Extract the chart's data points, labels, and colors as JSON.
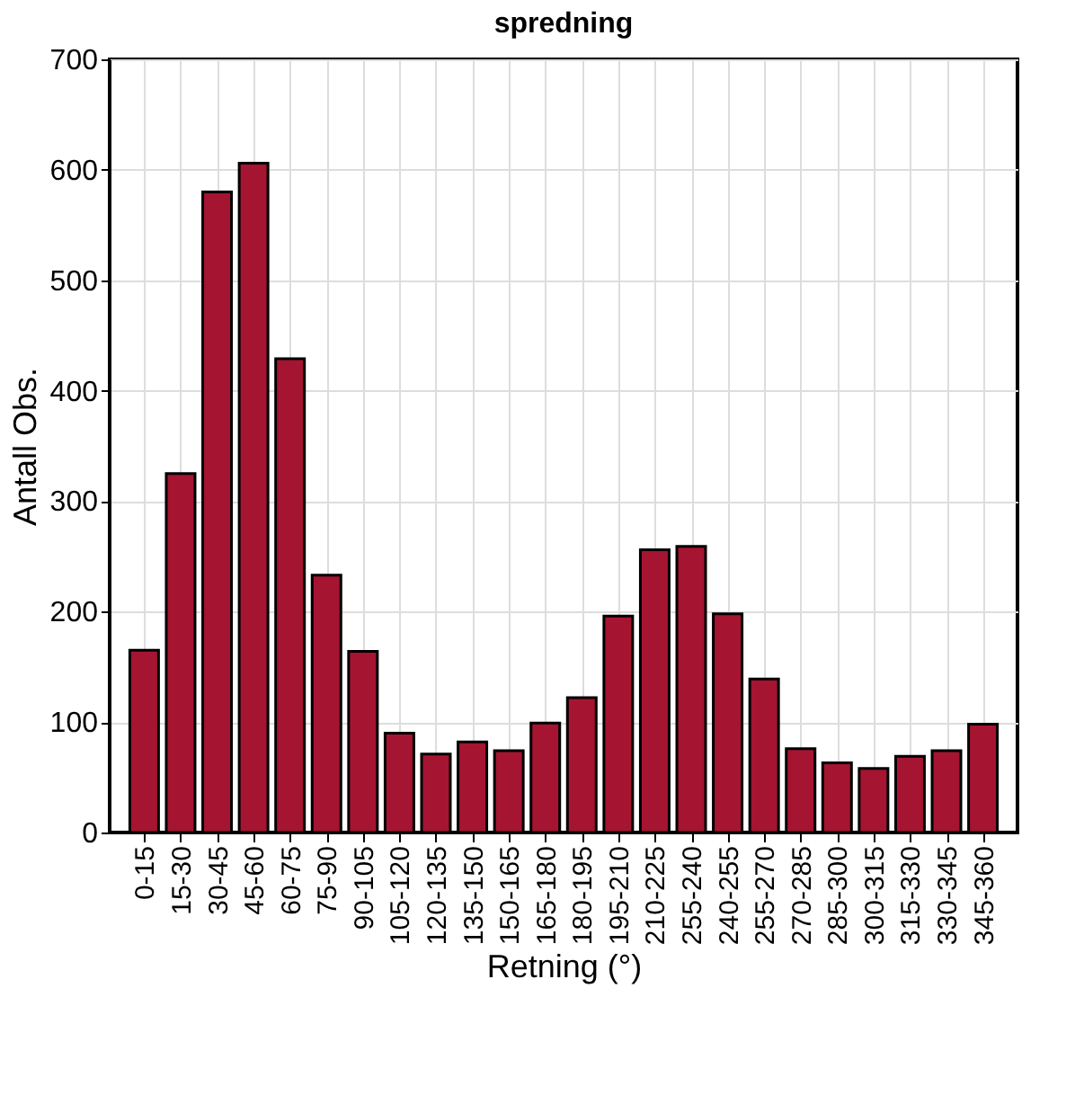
{
  "chart_data": {
    "type": "bar",
    "title": "spredning",
    "xlabel": "Retning (°)",
    "ylabel": "Antall Obs.",
    "categories": [
      "0-15",
      "15-30",
      "30-45",
      "45-60",
      "60-75",
      "75-90",
      "90-105",
      "105-120",
      "120-135",
      "135-150",
      "150-165",
      "165-180",
      "180-195",
      "195-210",
      "210-225",
      "255-240",
      "240-255",
      "255-270",
      "270-285",
      "285-300",
      "300-315",
      "315-330",
      "330-345",
      "345-360"
    ],
    "values": [
      165,
      325,
      580,
      606,
      429,
      233,
      164,
      90,
      71,
      82,
      74,
      99,
      122,
      196,
      256,
      259,
      198,
      139,
      76,
      63,
      58,
      69,
      74,
      98
    ],
    "color": "#a51431",
    "ylim": [
      0,
      700
    ],
    "yticks": [
      0,
      100,
      200,
      300,
      400,
      500,
      600,
      700
    ],
    "grid": true
  }
}
